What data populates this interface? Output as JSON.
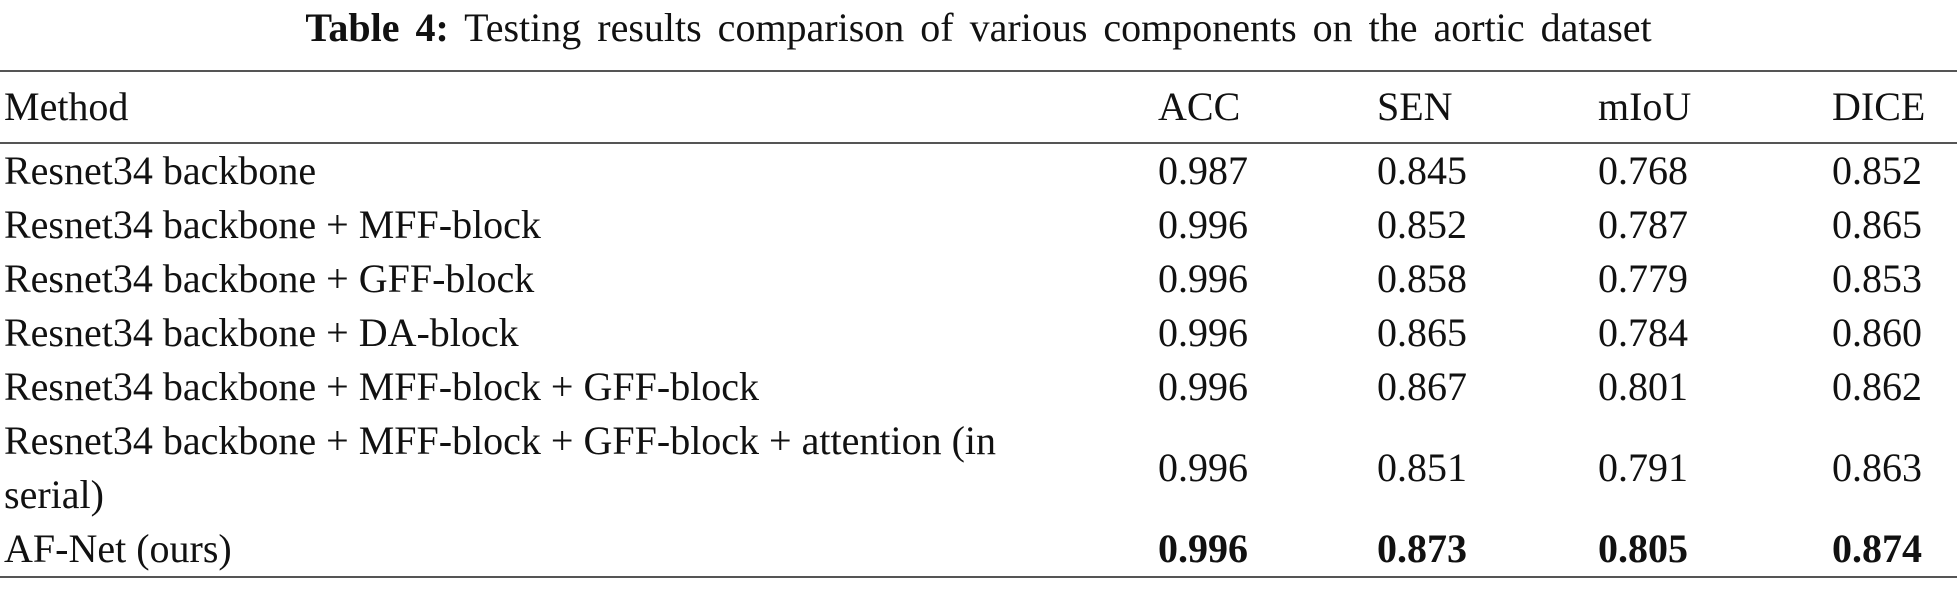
{
  "caption": {
    "label": "Table 4:",
    "text": "Testing results comparison of various components on the aortic dataset"
  },
  "table": {
    "columns": [
      "Method",
      "ACC",
      "SEN",
      "mIoU",
      "DICE"
    ],
    "rows": [
      {
        "method": "Resnet34 backbone",
        "values": [
          "0.987",
          "0.845",
          "0.768",
          "0.852"
        ]
      },
      {
        "method": "Resnet34 backbone + MFF-block",
        "values": [
          "0.996",
          "0.852",
          "0.787",
          "0.865"
        ]
      },
      {
        "method": "Resnet34 backbone + GFF-block",
        "values": [
          "0.996",
          "0.858",
          "0.779",
          "0.853"
        ]
      },
      {
        "method": "Resnet34 backbone + DA-block",
        "values": [
          "0.996",
          "0.865",
          "0.784",
          "0.860"
        ]
      },
      {
        "method": "Resnet34 backbone + MFF-block + GFF-block",
        "values": [
          "0.996",
          "0.867",
          "0.801",
          "0.862"
        ]
      },
      {
        "method": "Resnet34 backbone + MFF-block + GFF-block + attention (in serial)",
        "values": [
          "0.996",
          "0.851",
          "0.791",
          "0.863"
        ]
      },
      {
        "method": "AF-Net (ours)",
        "values": [
          "0.996",
          "0.873",
          "0.805",
          "0.874"
        ],
        "bold": true
      }
    ]
  }
}
